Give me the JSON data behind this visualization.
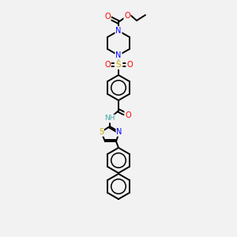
{
  "background_color": "#f2f2f2",
  "bond_color": "#000000",
  "atom_colors": {
    "O": "#ff0000",
    "N": "#0000ff",
    "S": "#ccaa00",
    "H": "#44aaaa",
    "C": "#000000"
  },
  "figsize": [
    3.0,
    3.0
  ],
  "dpi": 100,
  "xlim": [
    0,
    300
  ],
  "ylim": [
    0,
    300
  ]
}
